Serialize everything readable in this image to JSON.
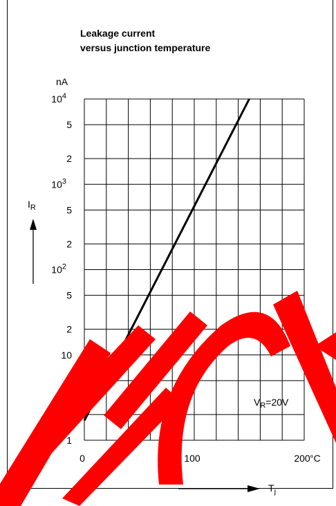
{
  "chart_data": {
    "type": "line",
    "title_line1": "Leakage current",
    "title_line2": "versus junction temperature",
    "y_unit": "nA",
    "y_label_main": "I",
    "y_label_sub": "R",
    "x_label_main": "T",
    "x_label_sub": "j",
    "x_unit": "°C",
    "annotation_main": "V",
    "annotation_sub": "R",
    "annotation_rest": "=20V",
    "xlim": [
      0,
      200
    ],
    "ylim": [
      1,
      10000
    ],
    "y_scale": "log",
    "grid": true,
    "x_ticks": [
      {
        "value": 0,
        "label": "0"
      },
      {
        "value": 100,
        "label": "100"
      },
      {
        "value": 200,
        "label": "200"
      }
    ],
    "y_ticks": [
      {
        "value": 1,
        "base": "1",
        "exp": ""
      },
      {
        "value": 2,
        "base": "2",
        "exp": ""
      },
      {
        "value": 5,
        "base": "5",
        "exp": ""
      },
      {
        "value": 10,
        "base": "10",
        "exp": ""
      },
      {
        "value": 20,
        "base": "2",
        "exp": ""
      },
      {
        "value": 50,
        "base": "5",
        "exp": ""
      },
      {
        "value": 100,
        "base": "10",
        "exp": "2"
      },
      {
        "value": 200,
        "base": "2",
        "exp": ""
      },
      {
        "value": 500,
        "base": "5",
        "exp": ""
      },
      {
        "value": 1000,
        "base": "10",
        "exp": "3"
      },
      {
        "value": 2000,
        "base": "2",
        "exp": ""
      },
      {
        "value": 5000,
        "base": "5",
        "exp": ""
      },
      {
        "value": 10000,
        "base": "10",
        "exp": "4"
      }
    ],
    "series": [
      {
        "x": [
          0,
          150
        ],
        "y": [
          1.7,
          10000
        ]
      }
    ]
  },
  "watermark": {
    "text": "TECH",
    "color": "#ff0000"
  }
}
